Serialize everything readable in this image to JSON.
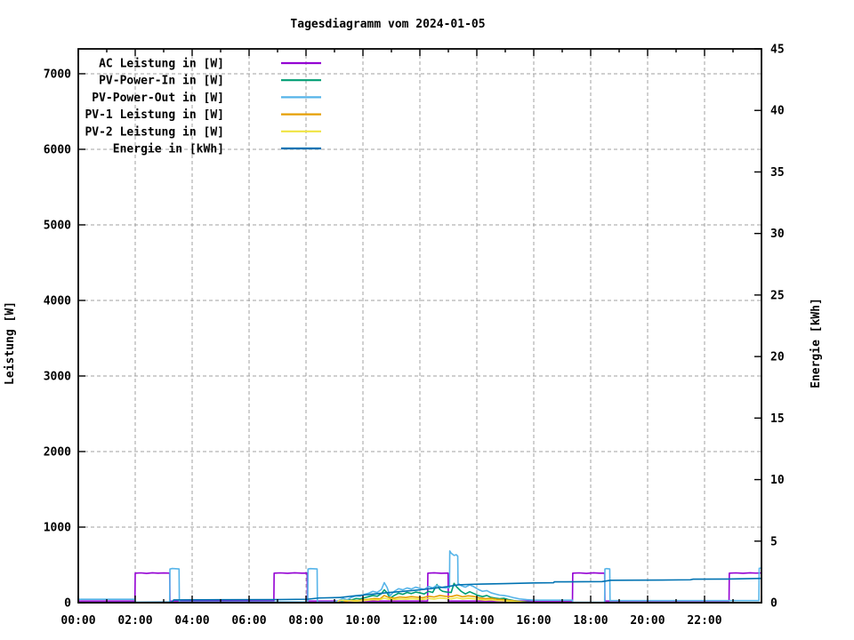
{
  "page": {
    "background": "#ffffff"
  },
  "chart_data": {
    "type": "line",
    "title": "Tagesdiagramm vom 2024-01-05",
    "xlabel": "",
    "ylabel": "Leistung [W]",
    "y2label": "Energie [kWh]",
    "xlim": [
      0,
      24
    ],
    "ylim": [
      0,
      7329
    ],
    "y2lim": [
      0,
      45
    ],
    "grid": true,
    "legend_position": "top-left-inside",
    "x_tick_labels": [
      "00:00",
      "02:00",
      "04:00",
      "06:00",
      "08:00",
      "10:00",
      "12:00",
      "14:00",
      "16:00",
      "18:00",
      "20:00",
      "22:00"
    ],
    "x_major_tick_hours": [
      0,
      2,
      4,
      6,
      8,
      10,
      12,
      14,
      16,
      18,
      20,
      22,
      24
    ],
    "x_minor_tick_hours": [
      1,
      3,
      5,
      7,
      9,
      11,
      13,
      15,
      17,
      19,
      21,
      23
    ],
    "x_grid_hours": [
      2,
      4,
      6,
      8,
      10,
      12,
      14,
      16,
      18,
      20,
      22
    ],
    "y_ticks": [
      0,
      1000,
      2000,
      3000,
      4000,
      5000,
      6000,
      7000
    ],
    "y2_ticks": [
      0,
      5,
      10,
      15,
      20,
      25,
      30,
      35,
      40,
      45
    ],
    "axis_color": "#000000",
    "grid_color": "#a0a0a0",
    "series": [
      {
        "name": "AC Leistung in [W]",
        "color": "#9400D3",
        "axis": "left",
        "points": [
          [
            0,
            22
          ],
          [
            1.99,
            22
          ],
          [
            2.0,
            390
          ],
          [
            2.2,
            394
          ],
          [
            2.4,
            388
          ],
          [
            2.6,
            395
          ],
          [
            2.8,
            390
          ],
          [
            3.0,
            393
          ],
          [
            3.21,
            391
          ],
          [
            3.22,
            22
          ],
          [
            5,
            22
          ],
          [
            6.87,
            22
          ],
          [
            6.88,
            390
          ],
          [
            7.1,
            394
          ],
          [
            7.35,
            389
          ],
          [
            7.6,
            395
          ],
          [
            7.85,
            390
          ],
          [
            8.04,
            392
          ],
          [
            8.05,
            22
          ],
          [
            10,
            22
          ],
          [
            12.27,
            22
          ],
          [
            12.28,
            390
          ],
          [
            12.5,
            395
          ],
          [
            12.75,
            389
          ],
          [
            12.99,
            392
          ],
          [
            13.0,
            22
          ],
          [
            15,
            22
          ],
          [
            17.36,
            22
          ],
          [
            17.37,
            390
          ],
          [
            17.6,
            394
          ],
          [
            17.85,
            388
          ],
          [
            18.1,
            395
          ],
          [
            18.3,
            390
          ],
          [
            18.49,
            391
          ],
          [
            18.5,
            22
          ],
          [
            20,
            22
          ],
          [
            22.86,
            22
          ],
          [
            22.87,
            390
          ],
          [
            23.1,
            394
          ],
          [
            23.35,
            389
          ],
          [
            23.6,
            395
          ],
          [
            23.8,
            391
          ],
          [
            24,
            393
          ]
        ]
      },
      {
        "name": "PV-Power-In in [W]",
        "color": "#009E73",
        "axis": "left",
        "points": [
          [
            0,
            0
          ],
          [
            9.2,
            0
          ],
          [
            9.3,
            25
          ],
          [
            9.45,
            40
          ],
          [
            9.6,
            35
          ],
          [
            9.75,
            55
          ],
          [
            9.9,
            50
          ],
          [
            10.05,
            65
          ],
          [
            10.2,
            80
          ],
          [
            10.35,
            95
          ],
          [
            10.5,
            85
          ],
          [
            10.65,
            120
          ],
          [
            10.75,
            170
          ],
          [
            10.85,
            130
          ],
          [
            10.95,
            60
          ],
          [
            11.1,
            95
          ],
          [
            11.25,
            125
          ],
          [
            11.4,
            110
          ],
          [
            11.55,
            135
          ],
          [
            11.7,
            120
          ],
          [
            11.85,
            140
          ],
          [
            12.0,
            130
          ],
          [
            12.15,
            115
          ],
          [
            12.3,
            150
          ],
          [
            12.45,
            135
          ],
          [
            12.6,
            240
          ],
          [
            12.7,
            175
          ],
          [
            12.8,
            150
          ],
          [
            12.95,
            140
          ],
          [
            13.1,
            135
          ],
          [
            13.2,
            255
          ],
          [
            13.3,
            205
          ],
          [
            13.45,
            150
          ],
          [
            13.6,
            115
          ],
          [
            13.75,
            145
          ],
          [
            13.9,
            120
          ],
          [
            14.05,
            95
          ],
          [
            14.2,
            80
          ],
          [
            14.35,
            95
          ],
          [
            14.5,
            70
          ],
          [
            14.65,
            60
          ],
          [
            14.8,
            52
          ],
          [
            14.95,
            58
          ],
          [
            15.1,
            42
          ],
          [
            15.3,
            28
          ],
          [
            15.5,
            18
          ],
          [
            15.75,
            8
          ],
          [
            16.1,
            0
          ],
          [
            24,
            0
          ]
        ]
      },
      {
        "name": "PV-Power-Out in [W]",
        "color": "#56B4E9",
        "axis": "left",
        "points": [
          [
            0,
            45
          ],
          [
            1.99,
            45
          ],
          [
            2.0,
            6
          ],
          [
            3.21,
            6
          ],
          [
            3.22,
            445
          ],
          [
            3.3,
            452
          ],
          [
            3.54,
            446
          ],
          [
            3.55,
            10
          ],
          [
            5,
            10
          ],
          [
            6.9,
            10
          ],
          [
            8.06,
            10
          ],
          [
            8.07,
            445
          ],
          [
            8.15,
            451
          ],
          [
            8.39,
            446
          ],
          [
            8.4,
            8
          ],
          [
            9.0,
            8
          ],
          [
            9.15,
            30
          ],
          [
            9.3,
            55
          ],
          [
            9.45,
            40
          ],
          [
            9.6,
            70
          ],
          [
            9.75,
            90
          ],
          [
            9.9,
            85
          ],
          [
            10.05,
            110
          ],
          [
            10.2,
            125
          ],
          [
            10.35,
            150
          ],
          [
            10.5,
            135
          ],
          [
            10.65,
            175
          ],
          [
            10.75,
            265
          ],
          [
            10.85,
            200
          ],
          [
            10.95,
            90
          ],
          [
            11.1,
            150
          ],
          [
            11.25,
            185
          ],
          [
            11.4,
            170
          ],
          [
            11.55,
            195
          ],
          [
            11.7,
            180
          ],
          [
            11.85,
            205
          ],
          [
            12.0,
            190
          ],
          [
            12.15,
            175
          ],
          [
            12.3,
            215
          ],
          [
            12.45,
            195
          ],
          [
            12.6,
            230
          ],
          [
            12.75,
            205
          ],
          [
            12.9,
            195
          ],
          [
            13.04,
            200
          ],
          [
            13.05,
            685
          ],
          [
            13.1,
            655
          ],
          [
            13.2,
            625
          ],
          [
            13.28,
            635
          ],
          [
            13.33,
            615
          ],
          [
            13.34,
            255
          ],
          [
            13.45,
            225
          ],
          [
            13.6,
            205
          ],
          [
            13.75,
            235
          ],
          [
            13.9,
            210
          ],
          [
            14.05,
            175
          ],
          [
            14.2,
            150
          ],
          [
            14.35,
            160
          ],
          [
            14.5,
            130
          ],
          [
            14.65,
            115
          ],
          [
            14.8,
            100
          ],
          [
            14.95,
            95
          ],
          [
            15.1,
            85
          ],
          [
            15.3,
            65
          ],
          [
            15.5,
            50
          ],
          [
            15.75,
            40
          ],
          [
            16.0,
            33
          ],
          [
            17.36,
            33
          ],
          [
            17.37,
            6
          ],
          [
            18.49,
            6
          ],
          [
            18.5,
            445
          ],
          [
            18.56,
            451
          ],
          [
            18.67,
            446
          ],
          [
            18.68,
            27
          ],
          [
            20,
            27
          ],
          [
            22,
            27
          ],
          [
            23.91,
            27
          ],
          [
            23.92,
            455
          ],
          [
            24,
            458
          ]
        ]
      },
      {
        "name": "PV-1 Leistung in [W]",
        "color": "#E69F00",
        "axis": "left",
        "points": [
          [
            0,
            0
          ],
          [
            9.3,
            0
          ],
          [
            9.45,
            22
          ],
          [
            9.6,
            30
          ],
          [
            9.8,
            28
          ],
          [
            10.0,
            38
          ],
          [
            10.2,
            45
          ],
          [
            10.4,
            55
          ],
          [
            10.6,
            50
          ],
          [
            10.75,
            95
          ],
          [
            10.9,
            70
          ],
          [
            11.1,
            60
          ],
          [
            11.3,
            75
          ],
          [
            11.5,
            68
          ],
          [
            11.7,
            80
          ],
          [
            11.9,
            72
          ],
          [
            12.1,
            65
          ],
          [
            12.3,
            85
          ],
          [
            12.5,
            75
          ],
          [
            12.7,
            95
          ],
          [
            12.9,
            85
          ],
          [
            13.1,
            80
          ],
          [
            13.3,
            100
          ],
          [
            13.5,
            78
          ],
          [
            13.7,
            90
          ],
          [
            13.9,
            82
          ],
          [
            14.1,
            62
          ],
          [
            14.3,
            52
          ],
          [
            14.5,
            58
          ],
          [
            14.7,
            45
          ],
          [
            14.9,
            40
          ],
          [
            15.1,
            32
          ],
          [
            15.35,
            22
          ],
          [
            15.6,
            10
          ],
          [
            15.85,
            0
          ],
          [
            24,
            0
          ]
        ]
      },
      {
        "name": "PV-2 Leistung in [W]",
        "color": "#F0E442",
        "axis": "left",
        "points": [
          [
            0,
            0
          ],
          [
            9.1,
            0
          ],
          [
            9.15,
            28
          ],
          [
            9.35,
            32
          ],
          [
            9.55,
            26
          ],
          [
            9.75,
            20
          ],
          [
            9.95,
            26
          ],
          [
            10.15,
            32
          ],
          [
            10.35,
            40
          ],
          [
            10.55,
            35
          ],
          [
            10.75,
            60
          ],
          [
            10.9,
            46
          ],
          [
            11.1,
            40
          ],
          [
            11.3,
            50
          ],
          [
            11.5,
            44
          ],
          [
            11.7,
            54
          ],
          [
            11.9,
            48
          ],
          [
            12.1,
            42
          ],
          [
            12.3,
            56
          ],
          [
            12.5,
            48
          ],
          [
            12.7,
            62
          ],
          [
            12.9,
            55
          ],
          [
            13.1,
            50
          ],
          [
            13.3,
            66
          ],
          [
            13.5,
            50
          ],
          [
            13.7,
            58
          ],
          [
            13.9,
            52
          ],
          [
            14.1,
            40
          ],
          [
            14.3,
            33
          ],
          [
            14.5,
            37
          ],
          [
            14.7,
            28
          ],
          [
            14.9,
            25
          ],
          [
            15.1,
            20
          ],
          [
            15.35,
            13
          ],
          [
            15.6,
            5
          ],
          [
            15.85,
            0
          ],
          [
            24,
            0
          ]
        ]
      },
      {
        "name": "Energie in [kWh]",
        "color": "#0072B2",
        "axis": "right",
        "points": [
          [
            0.4,
            0
          ],
          [
            2.0,
            0.02
          ],
          [
            3.3,
            0.05
          ],
          [
            3.35,
            0.22
          ],
          [
            5,
            0.24
          ],
          [
            6.9,
            0.25
          ],
          [
            8.05,
            0.28
          ],
          [
            8.45,
            0.38
          ],
          [
            9.2,
            0.42
          ],
          [
            9.75,
            0.57
          ],
          [
            10.3,
            0.68
          ],
          [
            10.8,
            0.8
          ],
          [
            11.3,
            0.9
          ],
          [
            11.8,
            1.0
          ],
          [
            12.3,
            1.12
          ],
          [
            12.8,
            1.25
          ],
          [
            13.0,
            1.32
          ],
          [
            13.35,
            1.45
          ],
          [
            13.8,
            1.49
          ],
          [
            14.2,
            1.51
          ],
          [
            15.0,
            1.55
          ],
          [
            16.0,
            1.6
          ],
          [
            16.7,
            1.62
          ],
          [
            16.72,
            1.69
          ],
          [
            18.4,
            1.71
          ],
          [
            18.7,
            1.82
          ],
          [
            20.5,
            1.84
          ],
          [
            21.5,
            1.86
          ],
          [
            21.6,
            1.91
          ],
          [
            22.8,
            1.92
          ],
          [
            24,
            1.97
          ]
        ]
      }
    ]
  }
}
